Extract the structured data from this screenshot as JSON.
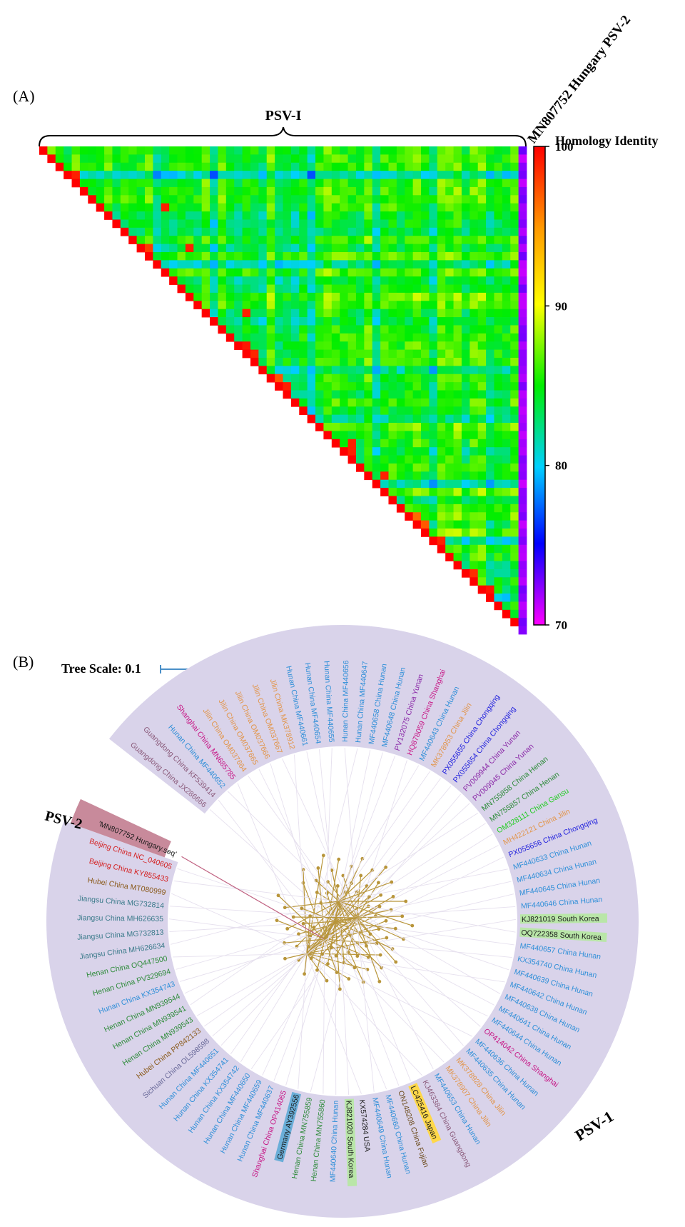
{
  "panel_a": {
    "label": "(A)",
    "bracket_label": "PSV-I",
    "corner_label": "MN807752 Hungary PSV-2"
  },
  "panel_b": {
    "label": "(B)",
    "psv1_label": "PSV-1",
    "psv2_label": "PSV-2"
  },
  "chart_data": [
    {
      "type": "heatmap",
      "title": "",
      "legend_title": "Homology Identity",
      "colorbar_range": [
        70,
        100
      ],
      "colorbar_ticks": [
        100,
        90,
        80,
        70
      ],
      "grid_size": 60,
      "layout": "lower-left triangle omitted; upper triangle of pairwise identities",
      "value_range_observed": [
        76,
        100
      ],
      "colors": {
        "70": "#ff00ff",
        "75": "#0000ff",
        "80": "#00d0ff",
        "85": "#00ee00",
        "90": "#ffff00",
        "95": "#ff9900",
        "100": "#ff0000"
      },
      "notes_values": "Off-diagonal cells mostly 80-90 (green/cyan), last column (MN807752 vs PSV-I) about 71-73 (magenta/purple), diagonal and near-identical pairs about 100 (red)"
    },
    {
      "type": "tree",
      "title": "",
      "scale_label": "Tree Scale: 0.1",
      "tree_color": "#b8953a",
      "clade_shade": "#d9d3ea",
      "outgroup_shade": "#c88a9b",
      "leaves": [
        {
          "label": "Guangdong China JX286666",
          "color": "#8a5a7a"
        },
        {
          "label": "Guangdong China KF539414",
          "color": "#8a5a7a"
        },
        {
          "label": "Hunan China MF440652",
          "color": "#2f8fd8"
        },
        {
          "label": "Shanghai China MN685785",
          "color": "#c71585"
        },
        {
          "label": "Jilin China OM037664",
          "color": "#e2954a"
        },
        {
          "label": "Jilin China OM037665",
          "color": "#e2954a"
        },
        {
          "label": "Jilin China OM037666",
          "color": "#e2954a"
        },
        {
          "label": "Jilin China OM037667",
          "color": "#e2954a"
        },
        {
          "label": "Jilin China MK378912",
          "color": "#e2954a"
        },
        {
          "label": "Hunan China MF440661",
          "color": "#2f8fd8"
        },
        {
          "label": "Hunan China MF440654",
          "color": "#2f8fd8"
        },
        {
          "label": "Hunan China MF440655",
          "color": "#2f8fd8"
        },
        {
          "label": "Hunan China MF440656",
          "color": "#2f8fd8"
        },
        {
          "label": "Hunan China MF440647",
          "color": "#2f8fd8"
        },
        {
          "label": "MF440658 China Hunan",
          "color": "#2f8fd8"
        },
        {
          "label": "MF440648 China Hunan",
          "color": "#2f8fd8"
        },
        {
          "label": "PV132075 China Yunan",
          "color": "#8b2aa8"
        },
        {
          "label": "HQ878059 China Shanghai",
          "color": "#c71585"
        },
        {
          "label": "MF440643 China Hunan",
          "color": "#2f8fd8"
        },
        {
          "label": "MK378953 China Jilin",
          "color": "#e2954a"
        },
        {
          "label": "PX055655 China Chongqing",
          "color": "#2222dd"
        },
        {
          "label": "PX055654 China Chongqing",
          "color": "#2222dd"
        },
        {
          "label": "PV009944 China Yunan",
          "color": "#8b2aa8"
        },
        {
          "label": "PV009945 China Yunan",
          "color": "#8b2aa8"
        },
        {
          "label": "MN755858 China Henan",
          "color": "#2e8b3a"
        },
        {
          "label": "MN755857 China Henan",
          "color": "#2e8b3a"
        },
        {
          "label": "OM328111 China Gansu",
          "color": "#22cc22"
        },
        {
          "label": "MH422121 China Jilin",
          "color": "#e2954a"
        },
        {
          "label": "PX055656 China Chongqing",
          "color": "#2222dd"
        },
        {
          "label": "MF440633 China Hunan",
          "color": "#2f8fd8"
        },
        {
          "label": "MF440634 China Hunan",
          "color": "#2f8fd8"
        },
        {
          "label": "MF440645 China Hunan",
          "color": "#2f8fd8"
        },
        {
          "label": "MF440646 China Hunan",
          "color": "#2f8fd8"
        },
        {
          "label": "KJ821019 South Korea",
          "color": "#1a1a1a",
          "highlight": "#b9e6a8"
        },
        {
          "label": "OQ722358 South Korea",
          "color": "#1a1a1a",
          "highlight": "#b9e6a8"
        },
        {
          "label": "MF440657 China Hunan",
          "color": "#2f8fd8"
        },
        {
          "label": "KX354740 China Hunan",
          "color": "#2f8fd8"
        },
        {
          "label": "MF440639 China Hunan",
          "color": "#2f8fd8"
        },
        {
          "label": "MF440642 China Hunan",
          "color": "#2f8fd8"
        },
        {
          "label": "MF440638 China Hunan",
          "color": "#2f8fd8"
        },
        {
          "label": "MF440641 China Hunan",
          "color": "#2f8fd8"
        },
        {
          "label": "MF440644 China Hunan",
          "color": "#2f8fd8"
        },
        {
          "label": "OP414042 China Shanghai",
          "color": "#c71585"
        },
        {
          "label": "MF440636 China Hunan",
          "color": "#2f8fd8"
        },
        {
          "label": "MF440635 China Hunan",
          "color": "#2f8fd8"
        },
        {
          "label": "MK378928 China Jilin",
          "color": "#e2954a"
        },
        {
          "label": "MK378907 China Jilin",
          "color": "#e2954a"
        },
        {
          "label": "MF440653 China Hunan",
          "color": "#2f8fd8"
        },
        {
          "label": "KJ463384 China Guangdong",
          "color": "#8a5a7a"
        },
        {
          "label": "LC425416 Japan",
          "color": "#1a1a1a",
          "highlight": "#ffd84a"
        },
        {
          "label": "ON148208 China Fujian",
          "color": "#6b4a1a"
        },
        {
          "label": "MF440660 China Hunan",
          "color": "#2f8fd8"
        },
        {
          "label": "MF440649 China Hunan",
          "color": "#2f8fd8"
        },
        {
          "label": "KX574284 USA",
          "color": "#1a1a1a"
        },
        {
          "label": "KJ821020 South Korea",
          "color": "#1a1a1a",
          "highlight": "#b9e6a8"
        },
        {
          "label": "MF440640 China Hunan",
          "color": "#2f8fd8"
        },
        {
          "label": "Henan China MN755860",
          "color": "#2e8b3a"
        },
        {
          "label": "Henan China MN755859",
          "color": "#2e8b3a"
        },
        {
          "label": "Germany AY392556",
          "color": "#1a1a1a",
          "highlight": "#6aaed8"
        },
        {
          "label": "Shanghai China OP414065",
          "color": "#c71585"
        },
        {
          "label": "Hunan China MF440637",
          "color": "#2f8fd8"
        },
        {
          "label": "Hunan China MF440659",
          "color": "#2f8fd8"
        },
        {
          "label": "Hunan China MF440650",
          "color": "#2f8fd8"
        },
        {
          "label": "Hunan China KX354742",
          "color": "#2f8fd8"
        },
        {
          "label": "Hunan China KX354741",
          "color": "#2f8fd8"
        },
        {
          "label": "Hunan China MF440651",
          "color": "#2f8fd8"
        },
        {
          "label": "Sichuan China OL598598",
          "color": "#6a6a9a"
        },
        {
          "label": "Hubei China PP842133",
          "color": "#8a5a1a"
        },
        {
          "label": "Henan China MN939543",
          "color": "#2e8b3a"
        },
        {
          "label": "Henan China MN939541",
          "color": "#2e8b3a"
        },
        {
          "label": "Henan China MN939544",
          "color": "#2e8b3a"
        },
        {
          "label": "Hunan China KX354743",
          "color": "#2f8fd8"
        },
        {
          "label": "Henan China PV329694",
          "color": "#2e8b3a"
        },
        {
          "label": "Henan China OQ447500",
          "color": "#2e8b3a"
        },
        {
          "label": "Jiangsu China MH626634",
          "color": "#3a7a8a"
        },
        {
          "label": "Jiangsu China MG732813",
          "color": "#3a7a8a"
        },
        {
          "label": "Jiangsu China MH626635",
          "color": "#3a7a8a"
        },
        {
          "label": "Jiangsu China MG732814",
          "color": "#3a7a8a"
        },
        {
          "label": "Hubei China MT080999",
          "color": "#8a5a1a"
        },
        {
          "label": "Beijing China KY855433",
          "color": "#d42020"
        },
        {
          "label": "Beijing China NC_040605",
          "color": "#d42020"
        },
        {
          "label": "'MN807752 Hungary.seq'",
          "color": "#1a1a1a",
          "outgroup": true
        }
      ]
    }
  ]
}
